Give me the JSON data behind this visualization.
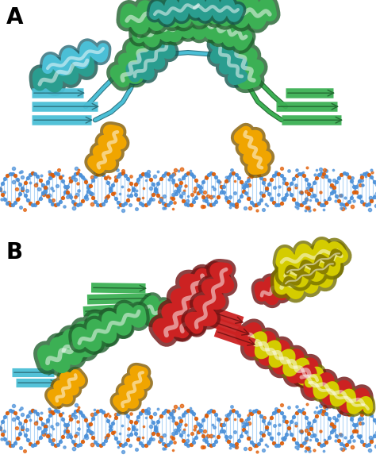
{
  "panel_A_label": "A",
  "panel_B_label": "B",
  "background_color": "#ffffff",
  "label_fontsize": 20,
  "label_fontweight": "bold",
  "fig_width": 4.74,
  "fig_height": 5.87,
  "dpi": 100,
  "colors": {
    "green": "#3cb054",
    "teal": "#2a9d8f",
    "cyan": "#4bbfd6",
    "cyan_dark": "#1a8fa0",
    "orange": "#f0a500",
    "orange_dark": "#c47a00",
    "red": "#cc2222",
    "red_dark": "#8b0000",
    "yellow": "#d4cc00",
    "yellow_dark": "#8b8000",
    "dna_blue": "#4a90d9",
    "dna_blue2": "#6ab0f0",
    "dna_orange": "#e05a00",
    "dna_red": "#cc3300",
    "white": "#ffffff",
    "black": "#111111"
  }
}
